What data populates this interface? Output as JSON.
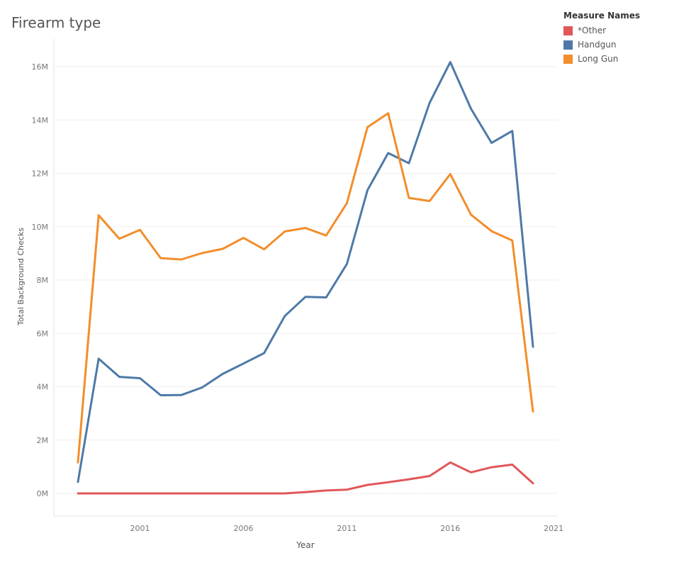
{
  "chart_data": {
    "type": "line",
    "title": "Firearm type",
    "xlabel": "Year",
    "ylabel": "Total Background Checks",
    "x_ticks": [
      "2001",
      "2006",
      "2011",
      "2016",
      "2021"
    ],
    "y_ticks": [
      "0M",
      "2M",
      "4M",
      "6M",
      "8M",
      "10M",
      "12M",
      "14M",
      "16M"
    ],
    "ylim": [
      0,
      16000000
    ],
    "legend_title": "Measure Names",
    "legend_position": "top-right",
    "x": [
      1998,
      1999,
      2000,
      2001,
      2002,
      2003,
      2004,
      2005,
      2006,
      2007,
      2008,
      2009,
      2010,
      2011,
      2012,
      2013,
      2014,
      2015,
      2016,
      2017,
      2018,
      2019,
      2020
    ],
    "series": [
      {
        "name": "*Other",
        "color": "#e15759",
        "values": [
          0,
          0,
          0,
          0,
          0,
          0,
          0,
          0,
          0,
          0,
          0,
          50000,
          110000,
          140000,
          320000,
          420000,
          530000,
          650000,
          1160000,
          790000,
          980000,
          1080000,
          380000
        ]
      },
      {
        "name": "Handgun",
        "color": "#4e79a7",
        "values": [
          430000,
          5050000,
          4370000,
          4320000,
          3680000,
          3690000,
          3970000,
          4480000,
          4870000,
          5260000,
          6650000,
          7370000,
          7350000,
          8600000,
          11370000,
          12760000,
          12380000,
          14640000,
          16170000,
          14420000,
          13140000,
          13590000,
          5500000
        ]
      },
      {
        "name": "Long Gun",
        "color": "#f28e2b",
        "values": [
          1160000,
          10430000,
          9550000,
          9880000,
          8820000,
          8770000,
          9010000,
          9170000,
          9580000,
          9150000,
          9820000,
          9950000,
          9670000,
          10880000,
          13730000,
          14250000,
          11080000,
          10960000,
          11970000,
          10450000,
          9830000,
          9480000,
          3070000
        ]
      }
    ],
    "grid": true
  }
}
